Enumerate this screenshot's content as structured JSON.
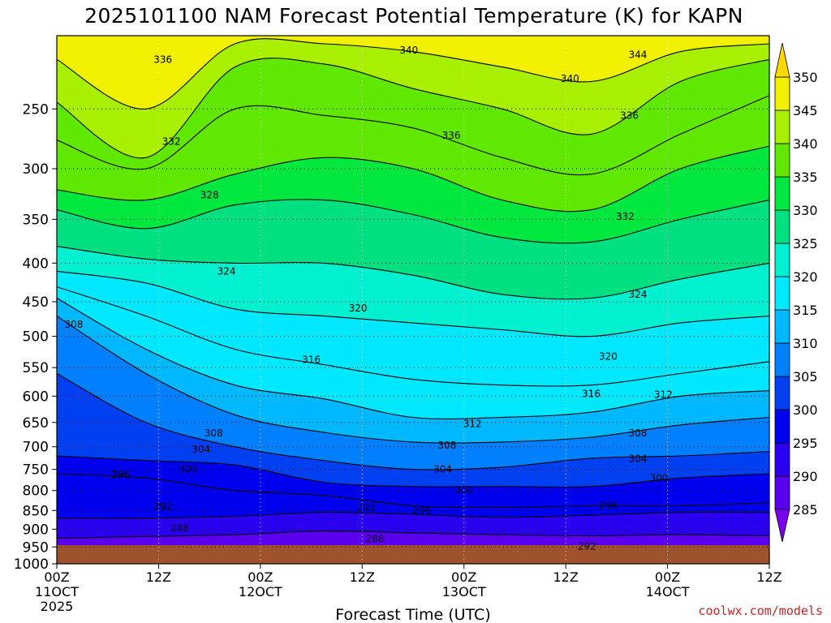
{
  "chart_data": {
    "type": "heatmap",
    "title": "2025101100 NAM Forecast Potential Temperature (K) for KAPN",
    "xlabel": "Forecast Time (UTC)",
    "credit": "coolwx.com/models",
    "x_ticks": [
      {
        "hour": 0,
        "lines": [
          "00Z",
          "11OCT",
          "2025"
        ]
      },
      {
        "hour": 12,
        "lines": [
          "12Z"
        ]
      },
      {
        "hour": 24,
        "lines": [
          "00Z",
          "12OCT"
        ]
      },
      {
        "hour": 36,
        "lines": [
          "12Z"
        ]
      },
      {
        "hour": 48,
        "lines": [
          "00Z",
          "13OCT"
        ]
      },
      {
        "hour": 60,
        "lines": [
          "12Z"
        ]
      },
      {
        "hour": 72,
        "lines": [
          "00Z",
          "14OCT"
        ]
      },
      {
        "hour": 84,
        "lines": [
          "12Z"
        ]
      }
    ],
    "xlim": [
      0,
      84
    ],
    "y_ticks": [
      250,
      300,
      350,
      400,
      450,
      500,
      550,
      600,
      650,
      700,
      750,
      800,
      850,
      900,
      950,
      1000
    ],
    "ylim": [
      200,
      1000
    ],
    "yscale": "log-pressure",
    "colorbar": {
      "levels": [
        285,
        290,
        295,
        300,
        305,
        310,
        315,
        320,
        325,
        330,
        335,
        340,
        345,
        350
      ],
      "labels": [
        "285",
        "290",
        "295",
        "300",
        "305",
        "310",
        "315",
        "320",
        "325",
        "330",
        "335",
        "340",
        "345",
        "350"
      ],
      "colors": [
        "#7a00ee",
        "#5a00ee",
        "#2a00ee",
        "#0000ee",
        "#0040f0",
        "#0080ff",
        "#00b8ff",
        "#00e8ff",
        "#00f0d0",
        "#00e080",
        "#00e840",
        "#60e800",
        "#a8f000",
        "#f0f000",
        "#ffd800"
      ]
    },
    "isentropes": [
      {
        "theta": 288,
        "p": [
          925,
          920,
          915,
          905,
          910,
          915,
          918,
          915,
          918
        ]
      },
      {
        "theta": 292,
        "p": [
          870,
          870,
          865,
          855,
          860,
          868,
          862,
          855,
          855
        ]
      },
      {
        "theta": 296,
        "p": [
          760,
          770,
          800,
          812,
          838,
          842,
          838,
          838,
          830
        ]
      },
      {
        "theta": 300,
        "p": [
          720,
          730,
          740,
          780,
          790,
          790,
          790,
          770,
          760
        ]
      },
      {
        "theta": 304,
        "p": [
          560,
          650,
          700,
          730,
          750,
          745,
          725,
          720,
          710
        ]
      },
      {
        "theta": 308,
        "p": [
          470,
          560,
          635,
          670,
          690,
          690,
          680,
          655,
          640
        ]
      },
      {
        "theta": 312,
        "p": [
          445,
          520,
          580,
          605,
          640,
          640,
          630,
          600,
          590
        ]
      },
      {
        "theta": 316,
        "p": [
          430,
          470,
          520,
          545,
          570,
          580,
          580,
          560,
          540
        ]
      },
      {
        "theta": 320,
        "p": [
          410,
          425,
          460,
          470,
          480,
          490,
          500,
          480,
          470
        ]
      },
      {
        "theta": 324,
        "p": [
          380,
          395,
          400,
          400,
          415,
          440,
          445,
          420,
          400
        ]
      },
      {
        "theta": 328,
        "p": [
          340,
          360,
          335,
          330,
          345,
          370,
          375,
          350,
          330
        ]
      },
      {
        "theta": 332,
        "p": [
          320,
          330,
          305,
          290,
          300,
          330,
          340,
          300,
          280
        ]
      },
      {
        "theta": 336,
        "p": [
          275,
          300,
          250,
          255,
          265,
          290,
          305,
          270,
          240
        ]
      },
      {
        "theta": 340,
        "p": [
          245,
          290,
          220,
          218,
          235,
          250,
          270,
          230,
          215
        ]
      },
      {
        "theta": 344,
        "p": [
          215,
          250,
          205,
          205,
          210,
          220,
          230,
          210,
          205
        ]
      }
    ],
    "contour_labels": [
      {
        "text": "336",
        "hour": 12.5,
        "p": 215
      },
      {
        "text": "340",
        "hour": 41.5,
        "p": 209
      },
      {
        "text": "344",
        "hour": 68.5,
        "p": 212
      },
      {
        "text": "340",
        "hour": 60.5,
        "p": 228
      },
      {
        "text": "336",
        "hour": 67.5,
        "p": 255
      },
      {
        "text": "332",
        "hour": 13.5,
        "p": 276
      },
      {
        "text": "336",
        "hour": 46.5,
        "p": 271
      },
      {
        "text": "328",
        "hour": 18.0,
        "p": 325
      },
      {
        "text": "332",
        "hour": 67.0,
        "p": 347
      },
      {
        "text": "324",
        "hour": 20.0,
        "p": 410
      },
      {
        "text": "324",
        "hour": 68.5,
        "p": 440
      },
      {
        "text": "320",
        "hour": 35.5,
        "p": 459
      },
      {
        "text": "308",
        "hour": 2.0,
        "p": 482
      },
      {
        "text": "320",
        "hour": 65.0,
        "p": 532
      },
      {
        "text": "316",
        "hour": 30.0,
        "p": 537
      },
      {
        "text": "316",
        "hour": 63.0,
        "p": 596
      },
      {
        "text": "312",
        "hour": 71.5,
        "p": 597
      },
      {
        "text": "312",
        "hour": 49.0,
        "p": 653
      },
      {
        "text": "308",
        "hour": 18.5,
        "p": 672
      },
      {
        "text": "308",
        "hour": 68.5,
        "p": 672
      },
      {
        "text": "304",
        "hour": 17.0,
        "p": 706
      },
      {
        "text": "308",
        "hour": 46.0,
        "p": 697
      },
      {
        "text": "304",
        "hour": 68.5,
        "p": 726
      },
      {
        "text": "300",
        "hour": 15.5,
        "p": 750
      },
      {
        "text": "304",
        "hour": 45.5,
        "p": 750
      },
      {
        "text": "296",
        "hour": 7.5,
        "p": 762
      },
      {
        "text": "300",
        "hour": 71.0,
        "p": 770
      },
      {
        "text": "300",
        "hour": 48.0,
        "p": 799
      },
      {
        "text": "292",
        "hour": 12.5,
        "p": 840
      },
      {
        "text": "296",
        "hour": 65.0,
        "p": 837
      },
      {
        "text": "292",
        "hour": 36.5,
        "p": 843
      },
      {
        "text": "296",
        "hour": 43.0,
        "p": 850
      },
      {
        "text": "288",
        "hour": 14.5,
        "p": 897
      },
      {
        "text": "288",
        "hour": 37.5,
        "p": 927
      },
      {
        "text": "292",
        "hour": 62.5,
        "p": 948
      }
    ]
  }
}
